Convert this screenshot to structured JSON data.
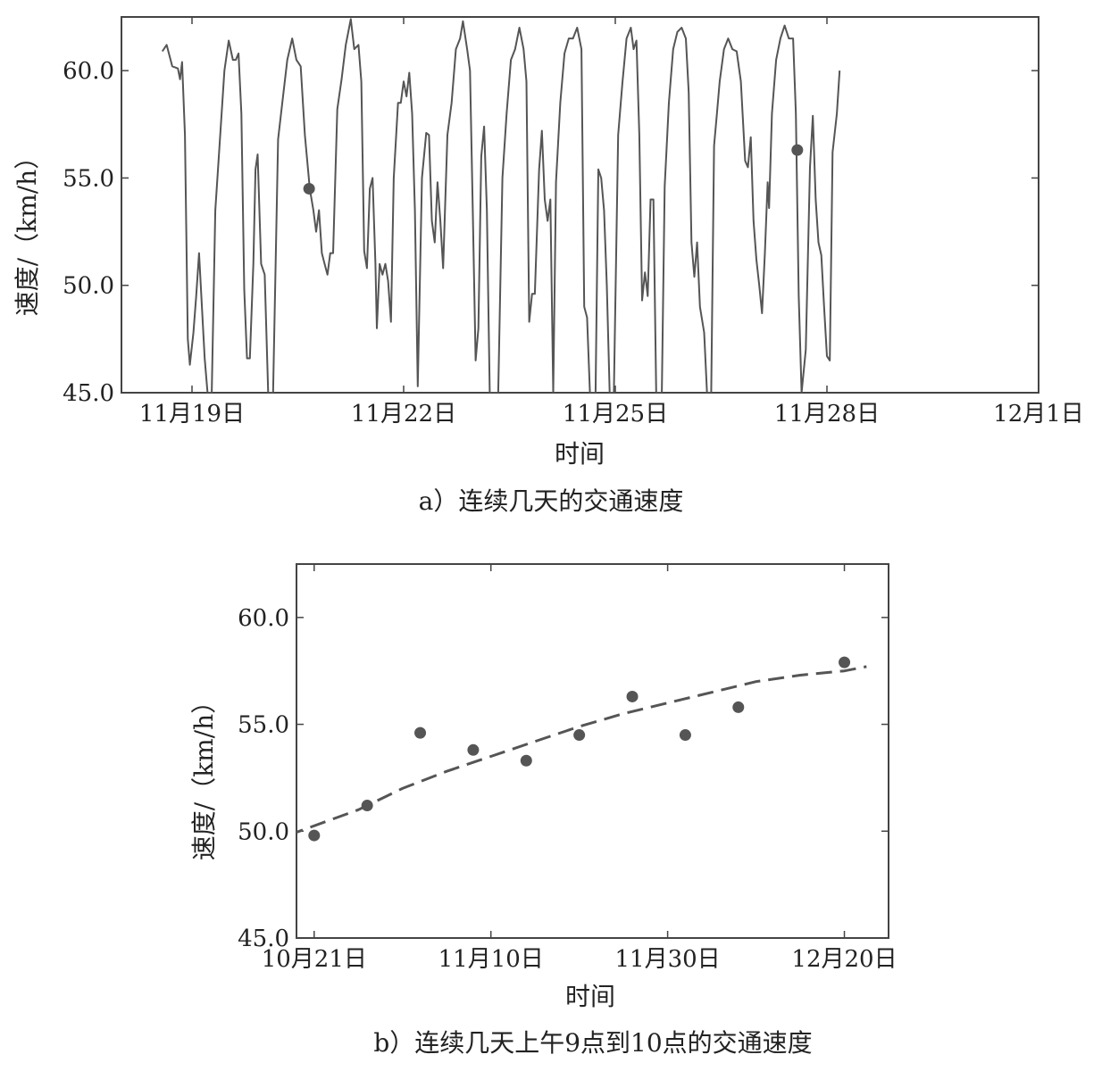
{
  "chart_data": [
    {
      "type": "line",
      "caption": "a）连续几天的交通速度",
      "xlabel": "时间",
      "ylabel": "速度/（km/h）",
      "ylim": [
        45.0,
        62.5
      ],
      "yticks": [
        "45.0",
        "50.0",
        "55.0",
        "60.0"
      ],
      "xticks": [
        "11月19日",
        "11月22日",
        "11月25日",
        "11月28日",
        "12月1日"
      ],
      "xtick_values": [
        19,
        22,
        25,
        28,
        31
      ],
      "xlim": [
        18.0,
        31.0
      ],
      "grid": false,
      "series": [
        {
          "style": "solid",
          "color": "#555555",
          "points": [
            [
              18.58,
              60.9
            ],
            [
              18.64,
              61.2
            ],
            [
              18.72,
              60.2
            ],
            [
              18.8,
              60.1
            ],
            [
              18.83,
              59.6
            ],
            [
              18.86,
              60.4
            ],
            [
              18.9,
              57.0
            ],
            [
              18.94,
              47.5
            ],
            [
              18.97,
              46.3
            ],
            [
              19.02,
              47.8
            ],
            [
              19.06,
              49.5
            ],
            [
              19.1,
              51.5
            ],
            [
              19.14,
              49.0
            ],
            [
              19.18,
              46.6
            ],
            [
              19.22,
              45.0
            ],
            [
              19.28,
              45.0
            ],
            [
              19.33,
              53.5
            ],
            [
              19.4,
              57.0
            ],
            [
              19.46,
              60.0
            ],
            [
              19.52,
              61.4
            ],
            [
              19.58,
              60.5
            ],
            [
              19.62,
              60.5
            ],
            [
              19.66,
              60.8
            ],
            [
              19.7,
              58.0
            ],
            [
              19.74,
              49.8
            ],
            [
              19.78,
              46.6
            ],
            [
              19.82,
              46.6
            ],
            [
              19.87,
              51.0
            ],
            [
              19.9,
              55.4
            ],
            [
              19.93,
              56.1
            ],
            [
              19.98,
              51.0
            ],
            [
              20.03,
              50.5
            ],
            [
              20.08,
              45.0
            ],
            [
              20.15,
              45.0
            ],
            [
              20.22,
              56.8
            ],
            [
              20.28,
              58.5
            ],
            [
              20.35,
              60.5
            ],
            [
              20.42,
              61.5
            ],
            [
              20.48,
              60.5
            ],
            [
              20.54,
              60.2
            ],
            [
              20.6,
              57.0
            ],
            [
              20.67,
              54.5
            ],
            [
              20.72,
              53.5
            ],
            [
              20.76,
              52.5
            ],
            [
              20.8,
              53.5
            ],
            [
              20.84,
              51.5
            ],
            [
              20.88,
              51.0
            ],
            [
              20.92,
              50.5
            ],
            [
              20.96,
              51.5
            ],
            [
              21.0,
              51.5
            ],
            [
              21.06,
              58.2
            ],
            [
              21.12,
              59.6
            ],
            [
              21.18,
              61.2
            ],
            [
              21.25,
              62.4
            ],
            [
              21.3,
              61.0
            ],
            [
              21.36,
              61.2
            ],
            [
              21.4,
              59.5
            ],
            [
              21.44,
              51.6
            ],
            [
              21.48,
              50.8
            ],
            [
              21.52,
              54.5
            ],
            [
              21.56,
              55.0
            ],
            [
              21.6,
              51.0
            ],
            [
              21.62,
              48.0
            ],
            [
              21.66,
              51.0
            ],
            [
              21.7,
              50.5
            ],
            [
              21.74,
              51.0
            ],
            [
              21.78,
              50.2
            ],
            [
              21.82,
              48.3
            ],
            [
              21.86,
              55.0
            ],
            [
              21.92,
              58.5
            ],
            [
              21.96,
              58.5
            ],
            [
              22.0,
              59.5
            ],
            [
              22.04,
              58.8
            ],
            [
              22.08,
              59.9
            ],
            [
              22.12,
              58.0
            ],
            [
              22.16,
              53.5
            ],
            [
              22.2,
              45.3
            ],
            [
              22.26,
              55.0
            ],
            [
              22.32,
              57.1
            ],
            [
              22.36,
              57.0
            ],
            [
              22.4,
              53.0
            ],
            [
              22.44,
              52.0
            ],
            [
              22.48,
              54.8
            ],
            [
              22.52,
              53.0
            ],
            [
              22.56,
              50.8
            ],
            [
              22.62,
              57.0
            ],
            [
              22.68,
              58.5
            ],
            [
              22.74,
              61.0
            ],
            [
              22.8,
              61.5
            ],
            [
              22.84,
              62.3
            ],
            [
              22.9,
              61.0
            ],
            [
              22.94,
              60.0
            ],
            [
              22.98,
              53.5
            ],
            [
              23.02,
              46.5
            ],
            [
              23.06,
              48.0
            ],
            [
              23.1,
              56.0
            ],
            [
              23.14,
              57.4
            ],
            [
              23.18,
              53.5
            ],
            [
              23.22,
              45.0
            ],
            [
              23.34,
              45.0
            ],
            [
              23.4,
              55.0
            ],
            [
              23.46,
              58.0
            ],
            [
              23.52,
              60.5
            ],
            [
              23.58,
              61.0
            ],
            [
              23.64,
              62.0
            ],
            [
              23.7,
              61.0
            ],
            [
              23.74,
              59.5
            ],
            [
              23.78,
              48.3
            ],
            [
              23.82,
              49.6
            ],
            [
              23.86,
              49.6
            ],
            [
              23.92,
              55.4
            ],
            [
              23.96,
              57.2
            ],
            [
              24.0,
              54.0
            ],
            [
              24.04,
              53.0
            ],
            [
              24.08,
              54.0
            ],
            [
              24.12,
              45.0
            ],
            [
              24.16,
              54.8
            ],
            [
              24.22,
              58.5
            ],
            [
              24.28,
              60.8
            ],
            [
              24.34,
              61.5
            ],
            [
              24.4,
              61.5
            ],
            [
              24.46,
              62.0
            ],
            [
              24.52,
              61.0
            ],
            [
              24.56,
              49.0
            ],
            [
              24.6,
              48.5
            ],
            [
              24.64,
              45.0
            ],
            [
              24.72,
              45.0
            ],
            [
              24.76,
              55.4
            ],
            [
              24.8,
              55.0
            ],
            [
              24.84,
              53.5
            ],
            [
              24.88,
              50.0
            ],
            [
              24.92,
              45.0
            ],
            [
              24.98,
              45.0
            ],
            [
              25.04,
              57.0
            ],
            [
              25.1,
              59.4
            ],
            [
              25.16,
              61.5
            ],
            [
              25.22,
              62.0
            ],
            [
              25.26,
              61.0
            ],
            [
              25.3,
              61.4
            ],
            [
              25.34,
              57.0
            ],
            [
              25.38,
              49.3
            ],
            [
              25.42,
              50.6
            ],
            [
              25.46,
              49.5
            ],
            [
              25.5,
              54.0
            ],
            [
              25.54,
              54.0
            ],
            [
              25.58,
              45.0
            ],
            [
              25.66,
              45.0
            ],
            [
              25.7,
              54.6
            ],
            [
              25.76,
              58.5
            ],
            [
              25.82,
              61.0
            ],
            [
              25.88,
              61.8
            ],
            [
              25.94,
              62.0
            ],
            [
              26.0,
              61.5
            ],
            [
              26.04,
              59.0
            ],
            [
              26.08,
              52.0
            ],
            [
              26.12,
              50.4
            ],
            [
              26.16,
              52.0
            ],
            [
              26.2,
              49.0
            ],
            [
              26.26,
              47.8
            ],
            [
              26.3,
              45.0
            ],
            [
              26.36,
              45.0
            ],
            [
              26.4,
              56.5
            ],
            [
              26.44,
              58.0
            ],
            [
              26.48,
              59.5
            ],
            [
              26.54,
              61.0
            ],
            [
              26.6,
              61.5
            ],
            [
              26.66,
              61.0
            ],
            [
              26.72,
              60.9
            ],
            [
              26.78,
              59.5
            ],
            [
              26.84,
              55.8
            ],
            [
              26.88,
              55.5
            ],
            [
              26.92,
              56.9
            ],
            [
              26.96,
              53.0
            ],
            [
              27.0,
              51.2
            ],
            [
              27.04,
              50.0
            ],
            [
              27.08,
              48.7
            ],
            [
              27.12,
              51.5
            ],
            [
              27.16,
              54.8
            ],
            [
              27.18,
              53.6
            ],
            [
              27.22,
              58.0
            ],
            [
              27.28,
              60.5
            ],
            [
              27.34,
              61.5
            ],
            [
              27.4,
              62.1
            ],
            [
              27.46,
              61.5
            ],
            [
              27.52,
              61.5
            ],
            [
              27.56,
              58.0
            ],
            [
              27.6,
              49.5
            ],
            [
              27.64,
              45.0
            ],
            [
              27.7,
              47.0
            ],
            [
              27.76,
              55.5
            ],
            [
              27.8,
              57.9
            ],
            [
              27.84,
              54.0
            ],
            [
              27.88,
              52.0
            ],
            [
              27.92,
              51.4
            ],
            [
              27.96,
              49.0
            ],
            [
              28.0,
              46.7
            ],
            [
              28.04,
              46.5
            ],
            [
              28.08,
              56.2
            ],
            [
              28.14,
              58.0
            ],
            [
              28.18,
              60.0
            ]
          ]
        }
      ],
      "highlight_points": [
        {
          "x": 20.66,
          "y": 54.5
        },
        {
          "x": 27.58,
          "y": 56.3
        }
      ]
    },
    {
      "type": "scatter",
      "caption": "b）连续几天上午9点到10点的交通速度",
      "xlabel": "时间",
      "ylabel": "速度/（km/h）",
      "ylim": [
        45.0,
        62.5
      ],
      "yticks": [
        "45.0",
        "50.0",
        "55.0",
        "60.0"
      ],
      "xticks": [
        "10月21日",
        "11月10日",
        "11月30日",
        "12月20日"
      ],
      "xtick_values": [
        0,
        20,
        40,
        60
      ],
      "xlim": [
        -2.0,
        65.0
      ],
      "grid": false,
      "series": [
        {
          "style": "markers",
          "color": "#555555",
          "points": [
            [
              0,
              49.8
            ],
            [
              6,
              51.2
            ],
            [
              12,
              54.6
            ],
            [
              18,
              53.8
            ],
            [
              24,
              53.3
            ],
            [
              30,
              54.5
            ],
            [
              36,
              56.3
            ],
            [
              42,
              54.5
            ],
            [
              48,
              55.8
            ],
            [
              60,
              57.9
            ]
          ]
        },
        {
          "style": "dashed",
          "color": "#555555",
          "points": [
            [
              -3,
              49.8
            ],
            [
              5,
              51.0
            ],
            [
              10,
              52.0
            ],
            [
              15,
              52.8
            ],
            [
              20,
              53.5
            ],
            [
              25,
              54.2
            ],
            [
              30,
              54.9
            ],
            [
              35,
              55.5
            ],
            [
              40,
              56.0
            ],
            [
              45,
              56.5
            ],
            [
              50,
              57.0
            ],
            [
              55,
              57.3
            ],
            [
              60,
              57.5
            ],
            [
              62.5,
              57.7
            ]
          ]
        }
      ]
    }
  ]
}
